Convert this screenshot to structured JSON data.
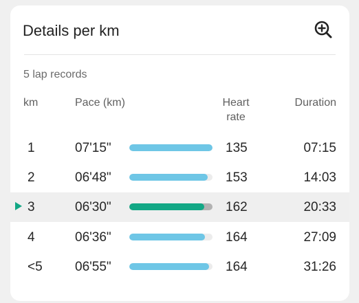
{
  "colors": {
    "pace_bar": "#6ec6e6",
    "pace_bar_selected": "#12a785",
    "selected_marker": "#12a785"
  },
  "header": {
    "title": "Details per km",
    "zoom_icon": "zoom-in-icon"
  },
  "summary": {
    "lap_records": "5 lap records"
  },
  "columns": {
    "km": "km",
    "pace": "Pace (km)",
    "heart_rate": "Heart rate",
    "duration": "Duration"
  },
  "laps": [
    {
      "km": "1",
      "pace": "07'15\"",
      "pace_level": 1.0,
      "heart_rate": "135",
      "duration": "07:15",
      "selected": false
    },
    {
      "km": "2",
      "pace": "06'48\"",
      "pace_level": 0.94,
      "heart_rate": "153",
      "duration": "14:03",
      "selected": false
    },
    {
      "km": "3",
      "pace": "06'30\"",
      "pace_level": 0.9,
      "heart_rate": "162",
      "duration": "20:33",
      "selected": true
    },
    {
      "km": "4",
      "pace": "06'36\"",
      "pace_level": 0.91,
      "heart_rate": "164",
      "duration": "27:09",
      "selected": false
    },
    {
      "km": "<5",
      "pace": "06'55\"",
      "pace_level": 0.96,
      "heart_rate": "164",
      "duration": "31:26",
      "selected": false
    }
  ]
}
